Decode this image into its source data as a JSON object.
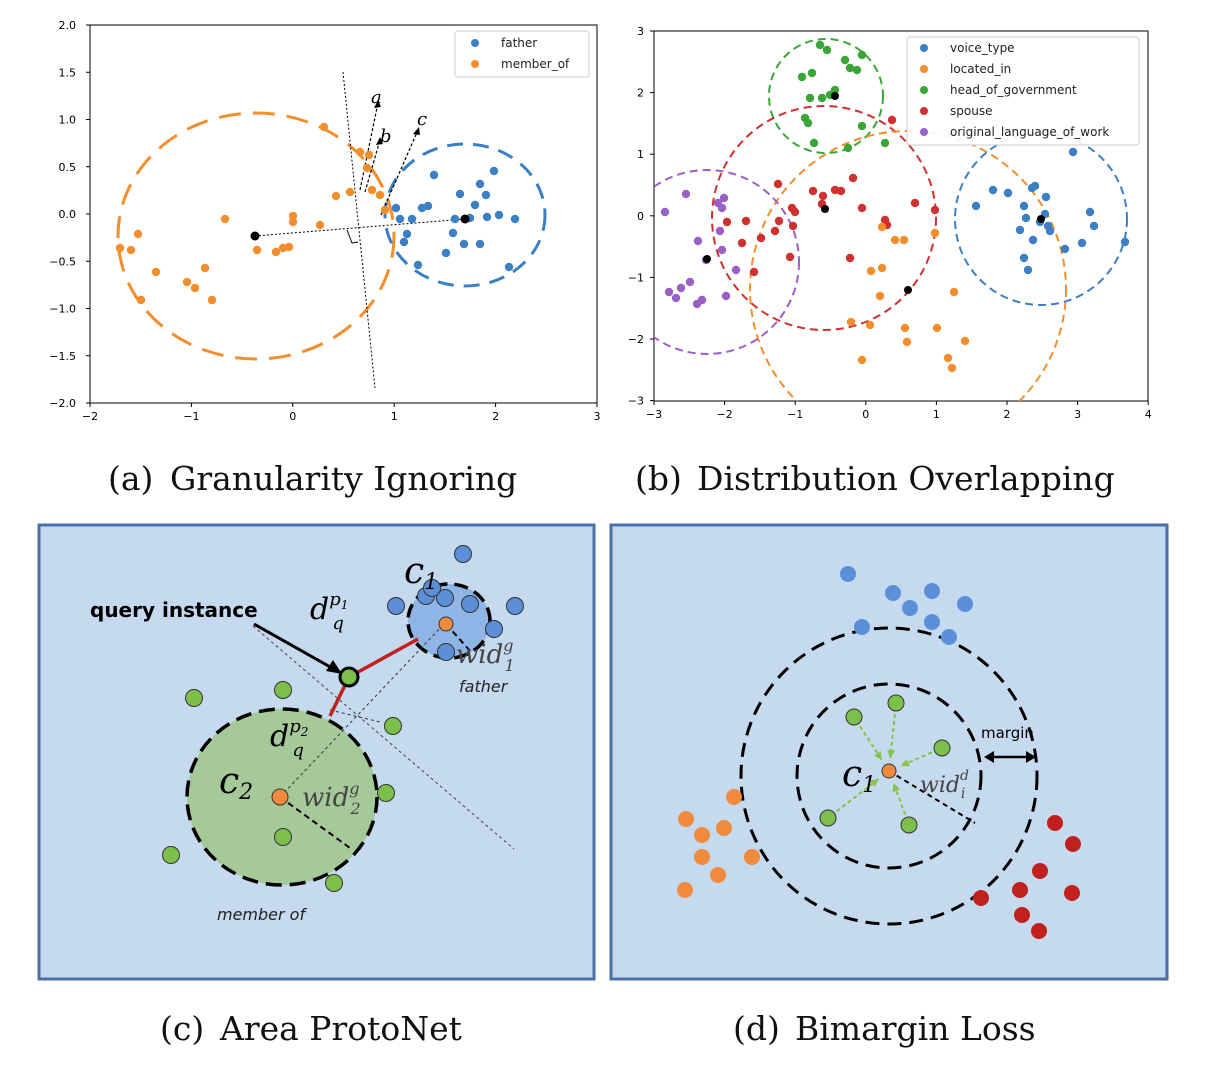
{
  "panel_a": {
    "caption_label": "(a)",
    "caption_text": "Granularity Ignoring",
    "legend": [
      {
        "name": "father",
        "color": "#3b7fc4"
      },
      {
        "name": "member_of",
        "color": "#f28e2b"
      }
    ],
    "xticks": [
      "−2",
      "−1",
      "0",
      "1",
      "2",
      "3"
    ],
    "yticks": [
      "2.0",
      "1.5",
      "1.0",
      "0.5",
      "0.0",
      "−0.5",
      "−1.0",
      "−1.5",
      "−2.0"
    ],
    "arrow_labels": [
      "a",
      "b",
      "c"
    ]
  },
  "panel_b": {
    "caption_label": "(b)",
    "caption_text": "Distribution Overlapping",
    "legend": [
      {
        "name": "voice_type",
        "color": "#3b7fc4"
      },
      {
        "name": "located_in",
        "color": "#f28e2b"
      },
      {
        "name": "head_of_government",
        "color": "#3aa637"
      },
      {
        "name": "spouse",
        "color": "#cf3030"
      },
      {
        "name": "original_language_of_work",
        "color": "#9b5fc8"
      }
    ],
    "xticks": [
      "−3",
      "−2",
      "−1",
      "0",
      "1",
      "2",
      "3",
      "4"
    ],
    "yticks": [
      "3",
      "2",
      "1",
      "0",
      "−1",
      "−2",
      "−3"
    ]
  },
  "panel_c": {
    "caption_label": "(c)",
    "caption_text": "Area ProtoNet",
    "query_label": "query instance",
    "father_label": "father",
    "member_label": "member of",
    "c1_label": "c",
    "c1_sub": "1",
    "c2_label": "c",
    "c2_sub": "2",
    "d1_main": "d",
    "d1_sup": "p",
    "d1_sup_sub": "1",
    "d1_sub": "q",
    "d2_main": "d",
    "d2_sup": "p",
    "d2_sup_sub": "2",
    "d2_sub": "q",
    "wid1_main": "wid",
    "wid1_sup": "g",
    "wid1_sub": "1",
    "wid2_main": "wid",
    "wid2_sup": "g",
    "wid2_sub": "2"
  },
  "panel_d": {
    "caption_label": "(d)",
    "caption_text": "Bimargin Loss",
    "margin_label": "margin",
    "c1_label": "c",
    "c1_sub": "1",
    "wid_main": "wid",
    "wid_sup": "d",
    "wid_sub": "i"
  },
  "colors": {
    "blue": "#3b7fc4",
    "orange": "#f28e2b",
    "green": "#3aa637",
    "red": "#cf3030",
    "purple": "#9b5fc8",
    "panel_bg": "#c5d9ef",
    "panel_border": "#4a6fa5",
    "diagram_blue": "#5b8fd8",
    "diagram_green": "#7cbf4a",
    "diagram_orange": "#f08a3c",
    "diagram_red": "#c0201e"
  }
}
